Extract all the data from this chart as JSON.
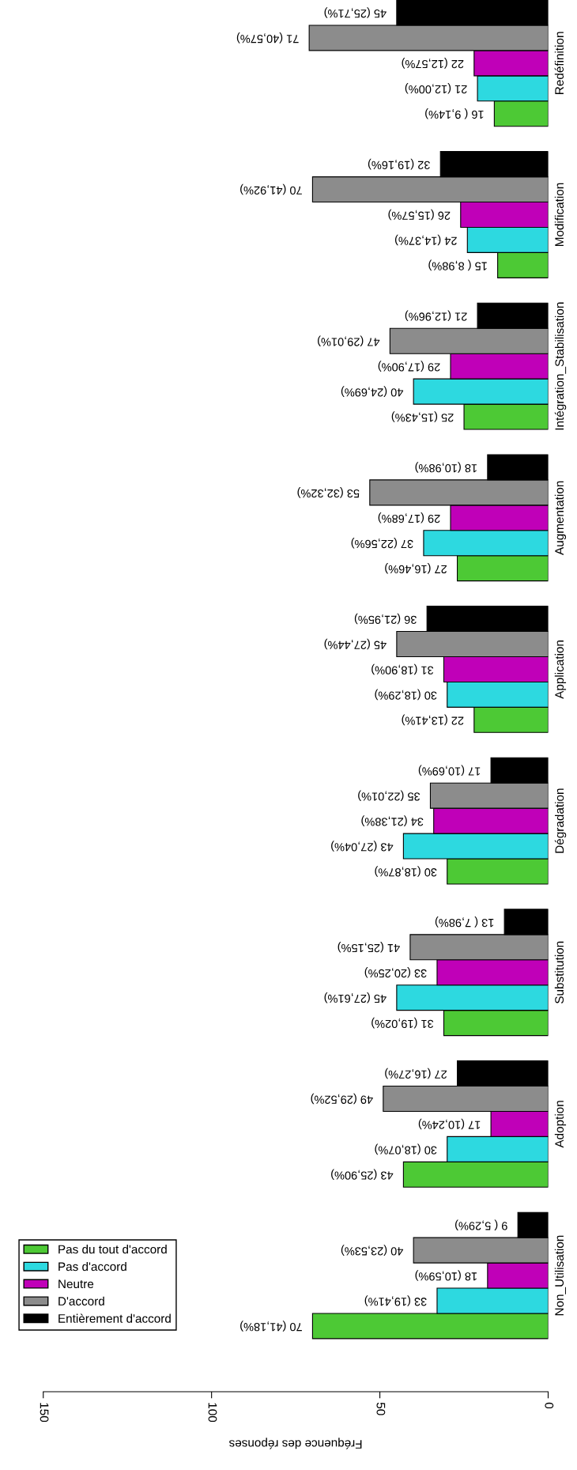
{
  "chart_data": {
    "type": "bar",
    "orientation": "horizontal",
    "xlabel": "Fréquence des réponses",
    "categories": [
      "Redéfinition",
      "Modification",
      "Intégration_Stabilisation",
      "Augmentation",
      "Application",
      "Dégradation",
      "Substitution",
      "Adoption",
      "Non_Utilisation"
    ],
    "xlim": [
      150,
      0
    ],
    "xticks": [
      0,
      50,
      100,
      150
    ],
    "legend": "bottom left",
    "series": [
      {
        "name": "Pas du tout d'accord",
        "color": "#4dc935",
        "values": [
          16,
          15,
          25,
          27,
          22,
          30,
          31,
          43,
          70
        ],
        "value_labels": [
          "16 ( 9,14%)",
          "15 ( 8,98%)",
          "25 (15,43%)",
          "27 (16,46%)",
          "22 (13,41%)",
          "30 (18,87%)",
          "31 (19,02%)",
          "43 (25,90%)",
          "70 (41,18%)"
        ]
      },
      {
        "name": "Pas d'accord",
        "color": "#2dd9e0",
        "values": [
          21,
          24,
          40,
          37,
          30,
          43,
          45,
          30,
          33
        ],
        "value_labels": [
          "21 (12,00%)",
          "24 (14,37%)",
          "40 (24,69%)",
          "37 (22,56%)",
          "30 (18,29%)",
          "43 (27,04%)",
          "45 (27,61%)",
          "30 (18,07%)",
          "33 (19,41%)"
        ]
      },
      {
        "name": "Neutre",
        "color": "#c000b8",
        "values": [
          22,
          26,
          29,
          29,
          31,
          34,
          33,
          17,
          18
        ],
        "value_labels": [
          "22 (12,57%)",
          "26 (15,57%)",
          "29 (17,90%)",
          "29 (17,68%)",
          "31 (18,90%)",
          "34 (21,38%)",
          "33 (20,25%)",
          "17 (10,24%)",
          "18 (10,59%)"
        ]
      },
      {
        "name": "D'accord",
        "color": "#8c8c8c",
        "values": [
          71,
          70,
          47,
          53,
          45,
          35,
          41,
          49,
          40
        ],
        "value_labels": [
          "71 (40,57%)",
          "70 (41,92%)",
          "47 (29,01%)",
          "53 (32,32%)",
          "45 (27,44%)",
          "35 (22,01%)",
          "41 (25,15%)",
          "49 (29,52%)",
          "40 (23,53%)"
        ]
      },
      {
        "name": "Entièrement d'accord",
        "color": "#000000",
        "values": [
          45,
          32,
          21,
          18,
          36,
          17,
          13,
          27,
          9
        ],
        "value_labels": [
          "45 (25,71%)",
          "32 (19,16%)",
          "21 (12,96%)",
          "18 (10,98%)",
          "36 (21,95%)",
          "17 (10,69%)",
          "13 ( 7,98%)",
          "27 (16,27%)",
          "9 ( 5,29%)"
        ]
      }
    ]
  }
}
